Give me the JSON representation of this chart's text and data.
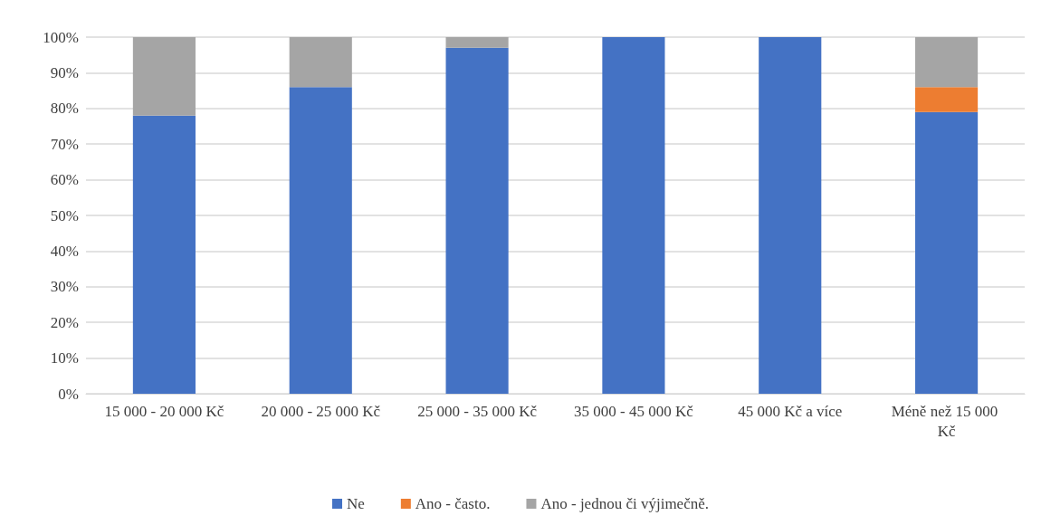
{
  "chart_data": {
    "type": "bar",
    "stacked": true,
    "categories": [
      "15 000 - 20 000 Kč",
      "20 000 - 25 000 Kč",
      "25 000 - 35 000 Kč",
      "35 000 - 45 000 Kč",
      "45 000 Kč a více",
      "Méně než 15 000 Kč"
    ],
    "series": [
      {
        "name": "Ne",
        "color": "#4472c4",
        "values": [
          78,
          86,
          97,
          100,
          100,
          79
        ]
      },
      {
        "name": "Ano - často.",
        "color": "#ed7d31",
        "values": [
          0,
          0,
          0,
          0,
          0,
          7
        ]
      },
      {
        "name": "Ano - jednou či výjimečně.",
        "color": "#a5a5a5",
        "values": [
          22,
          14,
          3,
          0,
          0,
          14
        ]
      }
    ],
    "ylim": [
      0,
      100
    ],
    "yticks": [
      {
        "value": 0,
        "label": "0%"
      },
      {
        "value": 10,
        "label": "10%"
      },
      {
        "value": 20,
        "label": "20%"
      },
      {
        "value": 30,
        "label": "30%"
      },
      {
        "value": 40,
        "label": "40%"
      },
      {
        "value": 50,
        "label": "50%"
      },
      {
        "value": 60,
        "label": "60%"
      },
      {
        "value": 70,
        "label": "70%"
      },
      {
        "value": 80,
        "label": "80%"
      },
      {
        "value": 90,
        "label": "90%"
      },
      {
        "value": 100,
        "label": "100%"
      }
    ],
    "grid": "y",
    "legend": "bottom"
  }
}
